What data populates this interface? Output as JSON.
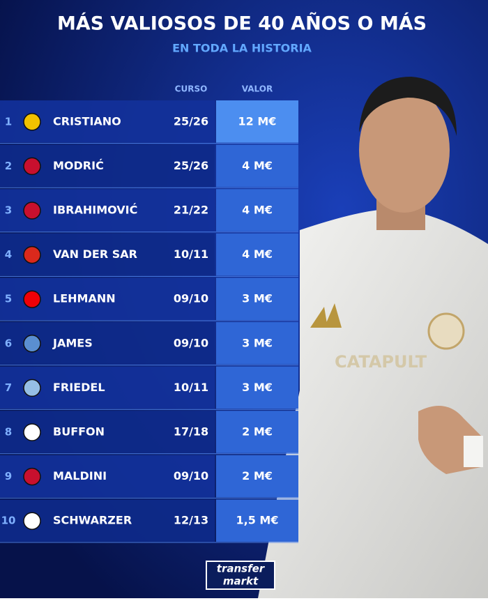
{
  "header": {
    "title": "MÁS VALIOSOS DE 40 AÑOS O MÁS",
    "subtitle": "EN TODA LA HISTORIA"
  },
  "table": {
    "columns": [
      "CURSO",
      "VALOR"
    ],
    "rows": [
      [
        "1",
        "CRISTIANO",
        "25/26",
        "12 M€"
      ],
      [
        "2",
        "MODRIĆ",
        "25/26",
        "4 M€"
      ],
      [
        "3",
        "IBRAHIMOVIĆ",
        "21/22",
        "4 M€"
      ],
      [
        "4",
        "VAN DER SAR",
        "10/11",
        "4 M€"
      ],
      [
        "5",
        "LEHMANN",
        "09/10",
        "3 M€"
      ],
      [
        "6",
        "JAMES",
        "09/10",
        "3 M€"
      ],
      [
        "7",
        "FRIEDEL",
        "10/11",
        "3 M€"
      ],
      [
        "8",
        "BUFFON",
        "17/18",
        "2 M€"
      ],
      [
        "9",
        "MALDINI",
        "09/10",
        "2 M€"
      ],
      [
        "10",
        "SCHWARZER",
        "12/13",
        "1,5 M€"
      ]
    ]
  },
  "logo": {
    "line1": "transfer",
    "line2": "markt"
  }
}
